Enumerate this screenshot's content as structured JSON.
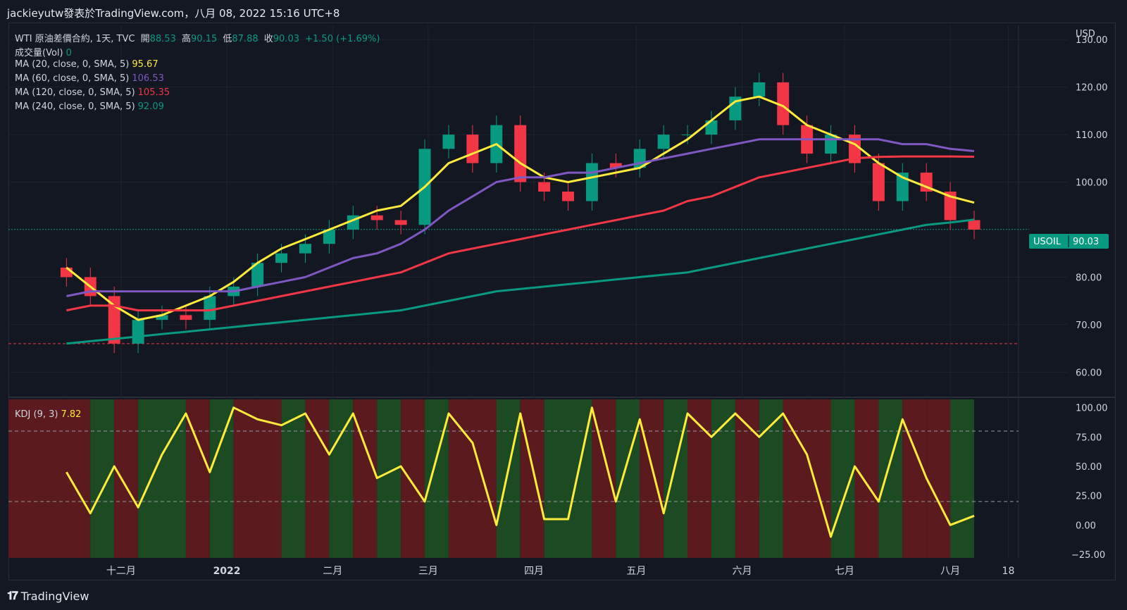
{
  "header": {
    "text": "jackieyutw發表於TradingView.com，八月 08, 2022 15:16 UTC+8"
  },
  "legend": {
    "main": {
      "name": "WTI 原油差價合約, 1天, TVC",
      "open_label": "開",
      "open": "88.53",
      "high_label": "高",
      "high": "90.15",
      "low_label": "低",
      "low": "87.88",
      "close_label": "收",
      "close": "90.03",
      "change": "+1.50 (+1.69%)"
    },
    "vol": {
      "label": "成交量(Vol)",
      "value": "0"
    },
    "ma20": {
      "label": "MA (20, close, 0, SMA, 5)",
      "value": "95.67",
      "color": "#ffeb3b"
    },
    "ma60": {
      "label": "MA (60, close, 0, SMA, 5)",
      "value": "106.53",
      "color": "#7e57c2"
    },
    "ma120": {
      "label": "MA (120, close, 0, SMA, 5)",
      "value": "105.35",
      "color": "#f23645"
    },
    "ma240": {
      "label": "MA (240, close, 0, SMA, 5)",
      "value": "92.09",
      "color": "#089981"
    },
    "kdj": {
      "label": "KDJ (9, 3)",
      "value": "7.82"
    }
  },
  "price_axis": {
    "currency": "USD",
    "ticks": [
      "130.00",
      "120.00",
      "110.00",
      "100.00",
      "80.00",
      "70.00",
      "60.00"
    ]
  },
  "kdj_axis": {
    "ticks": [
      "100.00",
      "75.00",
      "50.00",
      "25.00",
      "0.00",
      "−25.00"
    ]
  },
  "time_axis": {
    "ticks": [
      "十二月",
      "2022",
      "二月",
      "三月",
      "四月",
      "五月",
      "六月",
      "七月",
      "八月",
      "18"
    ]
  },
  "last_price": {
    "symbol": "USOIL",
    "value": "90.03"
  },
  "footer": {
    "brand": "TradingView"
  },
  "colors": {
    "up": "#089981",
    "down": "#f23645",
    "bg": "#131722",
    "kdj_line": "#ffeb3b",
    "zone_bull": "#1b4a23",
    "zone_bear": "#5a1a1e"
  },
  "chart_data": {
    "type": "candlestick",
    "symbol": "USOIL",
    "price_range": [
      55,
      133
    ],
    "kdj_range": [
      -28,
      107
    ],
    "kdj_levels": [
      80,
      20
    ],
    "horizontal_line": 66,
    "x": [
      "2021-11-15",
      "2021-11-22",
      "2021-11-29",
      "2021-12-06",
      "2021-12-13",
      "2021-12-20",
      "2021-12-27",
      "2022-01-03",
      "2022-01-10",
      "2022-01-17",
      "2022-01-24",
      "2022-01-31",
      "2022-02-07",
      "2022-02-14",
      "2022-02-21",
      "2022-02-28",
      "2022-03-07",
      "2022-03-14",
      "2022-03-21",
      "2022-03-28",
      "2022-04-04",
      "2022-04-11",
      "2022-04-18",
      "2022-04-25",
      "2022-05-02",
      "2022-05-09",
      "2022-05-16",
      "2022-05-23",
      "2022-05-30",
      "2022-06-06",
      "2022-06-13",
      "2022-06-20",
      "2022-06-27",
      "2022-07-04",
      "2022-07-11",
      "2022-07-18",
      "2022-07-25",
      "2022-08-01",
      "2022-08-08"
    ],
    "close": [
      80,
      76,
      66,
      71,
      72,
      71,
      76,
      78,
      83,
      85,
      87,
      90,
      93,
      92,
      91,
      107,
      110,
      104,
      112,
      100,
      98,
      96,
      104,
      103,
      107,
      110,
      110,
      113,
      118,
      121,
      112,
      106,
      110,
      104,
      96,
      102,
      98,
      92,
      90
    ],
    "series": [
      {
        "name": "MA (20, close, 0, SMA, 5)",
        "values": [
          82,
          78,
          74,
          71,
          72,
          74,
          76,
          79,
          83,
          86,
          88,
          90,
          92,
          94,
          95,
          99,
          104,
          106,
          108,
          104,
          101,
          100,
          101,
          102,
          103,
          106,
          109,
          113,
          117,
          118,
          116,
          112,
          110,
          108,
          104,
          101,
          99,
          97,
          95.67
        ]
      },
      {
        "name": "MA (60, close, 0, SMA, 5)",
        "values": [
          76,
          77,
          77,
          77,
          77,
          77,
          77,
          77,
          78,
          79,
          80,
          82,
          84,
          85,
          87,
          90,
          94,
          97,
          100,
          101,
          101,
          102,
          102,
          103,
          104,
          105,
          106,
          107,
          108,
          109,
          109,
          109,
          109,
          109,
          109,
          108,
          108,
          107,
          106.53
        ]
      },
      {
        "name": "MA (120, close, 0, SMA, 5)",
        "values": [
          73,
          74,
          74,
          73,
          73,
          73,
          73,
          74,
          75,
          76,
          77,
          78,
          79,
          80,
          81,
          83,
          85,
          86,
          87,
          88,
          89,
          90,
          91,
          92,
          93,
          94,
          96,
          97,
          99,
          101,
          102,
          103,
          104,
          105,
          105.3,
          105.4,
          105.4,
          105.4,
          105.35
        ]
      },
      {
        "name": "MA (240, close, 0, SMA, 5)",
        "values": [
          66,
          66.5,
          67,
          67.5,
          68,
          68.5,
          69,
          69.5,
          70,
          70.5,
          71,
          71.5,
          72,
          72.5,
          73,
          74,
          75,
          76,
          77,
          77.5,
          78,
          78.5,
          79,
          79.5,
          80,
          80.5,
          81,
          82,
          83,
          84,
          85,
          86,
          87,
          88,
          89,
          90,
          91,
          91.5,
          92.09
        ]
      },
      {
        "name": "KDJ (9, 3)",
        "values": [
          45,
          10,
          50,
          15,
          60,
          95,
          45,
          100,
          90,
          85,
          95,
          60,
          95,
          40,
          50,
          20,
          95,
          70,
          0,
          95,
          5,
          5,
          100,
          20,
          90,
          10,
          95,
          75,
          95,
          75,
          95,
          60,
          -10,
          50,
          20,
          90,
          40,
          0,
          7.82
        ]
      }
    ]
  }
}
